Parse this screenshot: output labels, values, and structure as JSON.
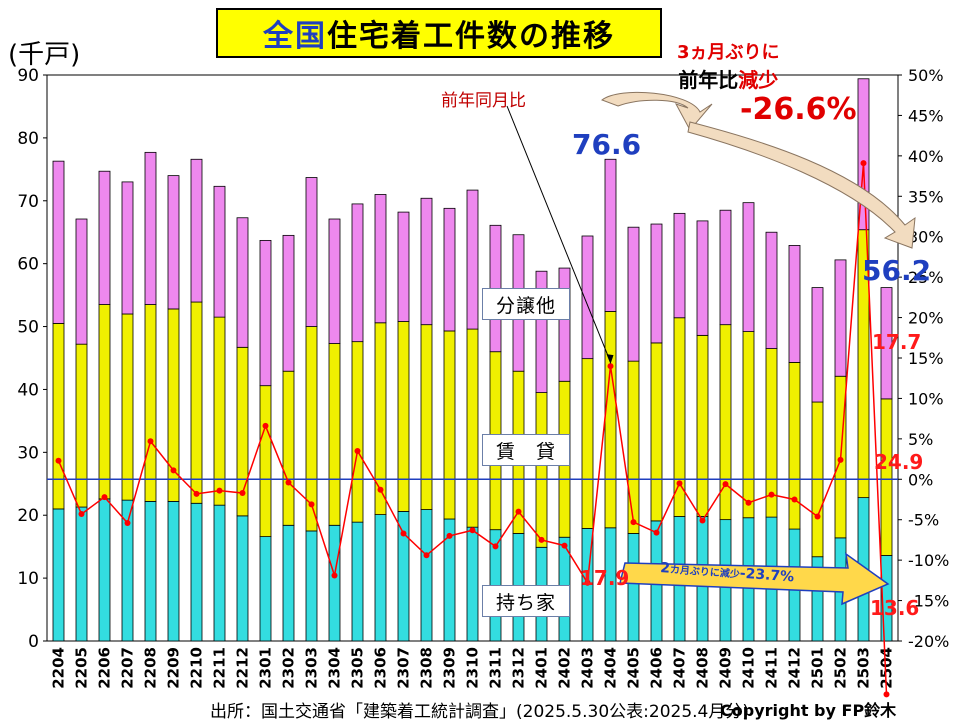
{
  "title_prefix": "全国",
  "title_main": "住宅着工件数の推移",
  "unit_left": "(千戸)",
  "category_labels": {
    "bunjo": "分譲他",
    "chintai": "賃　貸",
    "mochiie": "持ち家"
  },
  "yoy_label": "前年同月比",
  "callout": {
    "line1": "3ヵ月ぶりに",
    "line2_a": "前年比",
    "line2_b": "減少",
    "value": "-26.6%"
  },
  "arrow_text": {
    "prefix": "2",
    "mid": "カ月ぶりに減少",
    "value": "-23.7%"
  },
  "annotations": {
    "total_2404": "76.6",
    "total_2504": "56.2",
    "bunjo_2504": "17.7",
    "chintai_2504": "24.9",
    "mochiie_2504": "13.6",
    "mochiie_2403": "17.9"
  },
  "source": "出所：国土交通省「建築着工統計調査」(2025.5.30公表:2025.4月分)",
  "copyright": "Copyright by FP鈴木",
  "colors": {
    "mochiie": "#33dde0",
    "chintai": "#f0f000",
    "bunjo": "#ee88ee",
    "line": "#ff0000",
    "zero_line": "#1f3fbf"
  },
  "chart_data": {
    "type": "bar",
    "stacked": true,
    "categories": [
      "2204",
      "2205",
      "2206",
      "2207",
      "2208",
      "2209",
      "2210",
      "2211",
      "2212",
      "2301",
      "2302",
      "2303",
      "2304",
      "2305",
      "2306",
      "2307",
      "2308",
      "2309",
      "2310",
      "2311",
      "2312",
      "2401",
      "2402",
      "2403",
      "2404",
      "2405",
      "2406",
      "2407",
      "2408",
      "2409",
      "2410",
      "2411",
      "2412",
      "2501",
      "2502",
      "2503",
      "2504"
    ],
    "series": [
      {
        "name": "持ち家",
        "values": [
          21.0,
          21.3,
          22.6,
          22.4,
          22.2,
          22.2,
          21.9,
          21.6,
          19.9,
          16.6,
          18.4,
          17.5,
          18.4,
          18.9,
          20.1,
          20.6,
          20.9,
          19.4,
          18.1,
          17.7,
          17.1,
          14.9,
          16.5,
          17.9,
          18.0,
          17.1,
          19.1,
          19.8,
          19.8,
          19.3,
          19.6,
          19.7,
          17.8,
          13.4,
          16.4,
          22.8,
          13.6
        ]
      },
      {
        "name": "賃貸",
        "values": [
          29.5,
          25.9,
          30.9,
          29.6,
          31.3,
          30.6,
          32.0,
          29.9,
          26.8,
          24.0,
          24.5,
          32.5,
          28.9,
          28.7,
          30.5,
          30.2,
          29.4,
          29.9,
          31.5,
          28.3,
          25.8,
          24.6,
          24.8,
          27.0,
          34.4,
          27.4,
          28.3,
          31.6,
          28.8,
          31.0,
          29.6,
          26.8,
          26.5,
          24.6,
          25.7,
          42.6,
          24.9
        ]
      },
      {
        "name": "分譲他",
        "values": [
          25.8,
          19.9,
          21.2,
          21.0,
          24.2,
          21.2,
          22.7,
          20.8,
          20.6,
          23.1,
          21.6,
          23.7,
          19.8,
          21.9,
          20.4,
          17.4,
          20.1,
          19.5,
          22.1,
          20.1,
          21.7,
          19.3,
          18.0,
          19.5,
          24.2,
          21.3,
          18.9,
          16.6,
          18.2,
          18.2,
          20.5,
          18.5,
          18.6,
          18.2,
          18.5,
          24.0,
          17.7
        ]
      }
    ],
    "yoy_series": {
      "name": "前年同月比",
      "values": [
        2.3,
        -4.3,
        -2.2,
        -5.4,
        4.7,
        1.1,
        -1.8,
        -1.4,
        -1.7,
        6.6,
        -0.4,
        -3.1,
        -11.9,
        3.5,
        -1.3,
        -6.7,
        -9.4,
        -7.0,
        -6.3,
        -8.3,
        -4.0,
        -7.5,
        -8.2,
        -12.8,
        14.0,
        -5.3,
        -6.6,
        -0.5,
        -5.1,
        -0.6,
        -2.9,
        -1.9,
        -2.5,
        -4.6,
        2.4,
        39.1,
        -26.6
      ]
    },
    "ylabel": "(千戸)",
    "ylim": [
      0,
      90
    ],
    "yticks": [
      0,
      10,
      20,
      30,
      40,
      50,
      60,
      70,
      80,
      90
    ],
    "y2lim": [
      -20,
      50
    ],
    "y2ticks": [
      "50%",
      "45%",
      "40%",
      "35%",
      "30%",
      "25%",
      "20%",
      "15%",
      "10%",
      "5%",
      "0%",
      "-5%",
      "-10%",
      "-15%",
      "-20%"
    ],
    "grid": false,
    "legend": "none"
  }
}
